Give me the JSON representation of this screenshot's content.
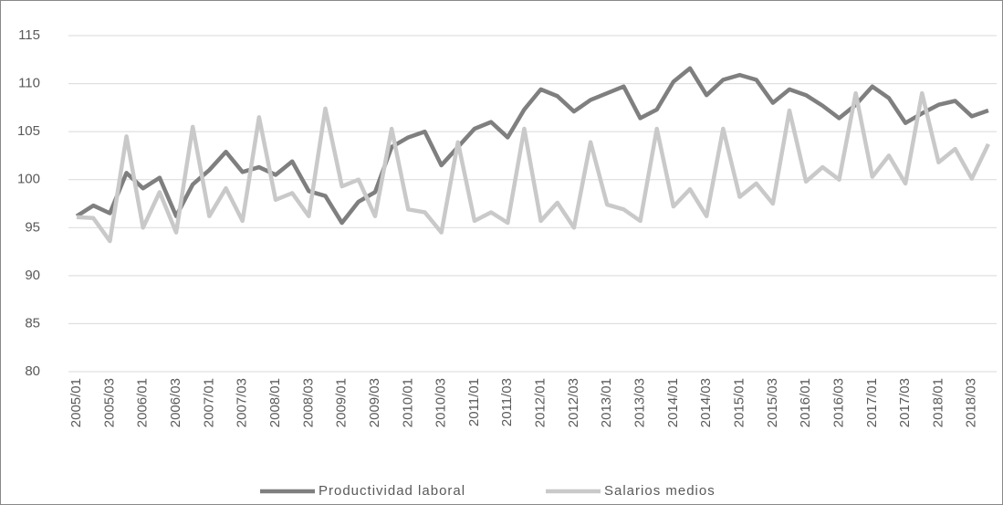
{
  "chart_data": {
    "type": "line",
    "categories": [
      "2005/01",
      null,
      "2005/03",
      null,
      "2006/01",
      null,
      "2006/03",
      null,
      "2007/01",
      null,
      "2007/03",
      null,
      "2008/01",
      null,
      "2008/03",
      null,
      "2009/01",
      null,
      "2009/03",
      null,
      "2010/01",
      null,
      "2010/03",
      null,
      "2011/01",
      null,
      "2011/03",
      null,
      "2012/01",
      null,
      "2012/03",
      null,
      "2013/01",
      null,
      "2013/03",
      null,
      "2014/01",
      null,
      "2014/03",
      null,
      "2015/01",
      null,
      "2015/03",
      null,
      "2016/01",
      null,
      "2016/03",
      null,
      "2017/01",
      null,
      "2017/03",
      null,
      "2018/01",
      null,
      "2018/03",
      null
    ],
    "series": [
      {
        "name": "Productividad laboral",
        "color": "#7f7f7f",
        "values": [
          96.2,
          97.3,
          96.5,
          100.7,
          99.1,
          100.2,
          96.2,
          99.5,
          101.0,
          102.9,
          100.8,
          101.3,
          100.5,
          101.9,
          98.8,
          98.3,
          95.5,
          97.7,
          98.7,
          103.4,
          104.4,
          105.0,
          101.5,
          103.4,
          105.3,
          106.0,
          104.4,
          107.3,
          109.4,
          108.7,
          107.1,
          108.3,
          109.0,
          109.7,
          106.4,
          107.3,
          110.2,
          111.6,
          108.8,
          110.4,
          110.9,
          110.4,
          108.0,
          109.4,
          108.8,
          107.7,
          106.4,
          107.8,
          109.7,
          108.5,
          105.9,
          106.9,
          107.8,
          108.2,
          106.6,
          107.2
        ]
      },
      {
        "name": "Salarios medios",
        "color": "#c9c9c9",
        "values": [
          96.1,
          96.0,
          93.6,
          104.5,
          95.0,
          98.7,
          94.5,
          105.5,
          96.2,
          99.1,
          95.7,
          106.5,
          97.9,
          98.6,
          96.2,
          107.4,
          99.3,
          100.0,
          96.2,
          105.3,
          96.9,
          96.6,
          94.5,
          103.9,
          95.7,
          96.6,
          95.5,
          105.3,
          95.7,
          97.6,
          95.0,
          103.9,
          97.4,
          96.9,
          95.7,
          105.3,
          97.2,
          99.0,
          96.2,
          105.3,
          98.2,
          99.6,
          97.5,
          107.2,
          99.8,
          101.3,
          100.0,
          109.0,
          100.3,
          102.5,
          99.6,
          109.0,
          101.8,
          103.2,
          100.1,
          103.7
        ]
      }
    ],
    "ylim": [
      80,
      115
    ],
    "yticks": [
      80,
      85,
      90,
      95,
      100,
      105,
      110,
      115
    ],
    "grid": true,
    "legend": "bottom"
  }
}
